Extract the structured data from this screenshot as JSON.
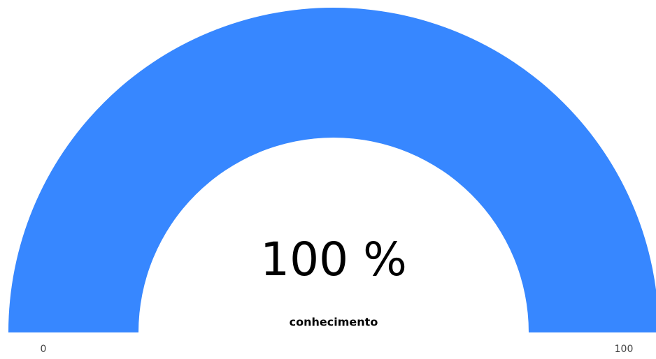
{
  "chart_data": {
    "type": "gauge",
    "title": "conhecimento",
    "values": [
      100
    ],
    "value_labels": [
      "100 %"
    ],
    "color": "#3787ff",
    "ylim": [
      0,
      100
    ],
    "yticks": [
      0,
      100
    ]
  }
}
